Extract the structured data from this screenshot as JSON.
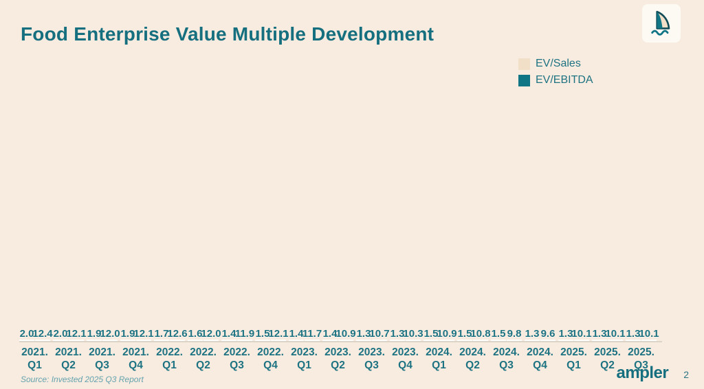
{
  "title": "Food Enterprise Value Multiple Development",
  "colors": {
    "background": "#f8ebe0",
    "ev_sales": "#f2dfc8",
    "ev_ebitda": "#107585",
    "text_teal": "#1d7382",
    "title_teal": "#156f7e",
    "baseline": "#ddd4c8"
  },
  "legend": {
    "items": [
      {
        "label": "EV/Sales",
        "color": "#f2dfc8"
      },
      {
        "label": "EV/EBITDA",
        "color": "#107585"
      }
    ]
  },
  "chart_data": {
    "type": "bar",
    "title": "Food Enterprise Value Multiple Development",
    "categories": [
      "2021. Q1",
      "2021. Q2",
      "2021. Q3",
      "2021. Q4",
      "2022. Q1",
      "2022. Q2",
      "2022. Q3",
      "2022. Q4",
      "2023. Q1",
      "2023. Q2",
      "2023. Q3",
      "2023. Q4",
      "2024. Q1",
      "2024. Q2",
      "2024. Q3",
      "2024. Q4",
      "2025. Q1",
      "2025. Q2",
      "2025. Q3"
    ],
    "series": [
      {
        "name": "EV/Sales",
        "color": "#f2dfc8",
        "values": [
          2.0,
          2.0,
          1.9,
          1.9,
          1.7,
          1.6,
          1.4,
          1.5,
          1.4,
          1.4,
          1.3,
          1.3,
          1.5,
          1.5,
          1.5,
          1.3,
          1.3,
          1.3,
          1.3
        ]
      },
      {
        "name": "EV/EBITDA",
        "color": "#107585",
        "values": [
          12.4,
          12.1,
          12.0,
          12.1,
          12.6,
          12.0,
          11.9,
          12.1,
          11.7,
          10.9,
          10.7,
          10.3,
          10.9,
          10.8,
          9.8,
          9.6,
          10.1,
          10.1,
          10.1
        ]
      }
    ],
    "xlabel": "",
    "ylabel": "",
    "ylim": [
      0,
      12.6
    ],
    "grid": false,
    "value_labels": true,
    "legend_position": "top-right"
  },
  "footer": {
    "source": "Source: Invested 2025 Q3 Report",
    "logo_text": "ampler",
    "page_number": "2"
  },
  "logo_icon": "sail-over-waves-icon"
}
